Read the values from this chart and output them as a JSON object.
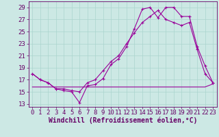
{
  "background_color": "#cce8e4",
  "grid_color": "#aad4ce",
  "line_color": "#990099",
  "xlabel": "Windchill (Refroidissement éolien,°C)",
  "xlabel_fontsize": 7,
  "tick_fontsize": 6.5,
  "xlim": [
    -0.5,
    23.5
  ],
  "ylim": [
    12.5,
    30.0
  ],
  "yticks": [
    13,
    15,
    17,
    19,
    21,
    23,
    25,
    27,
    29
  ],
  "xticks": [
    0,
    1,
    2,
    3,
    4,
    5,
    6,
    7,
    8,
    9,
    10,
    11,
    12,
    13,
    14,
    15,
    16,
    17,
    18,
    19,
    20,
    21,
    22,
    23
  ],
  "series1_x": [
    0,
    1,
    2,
    3,
    4,
    5,
    6,
    7,
    8,
    9,
    10,
    11,
    12,
    13,
    14,
    15,
    16,
    17,
    18,
    19,
    20,
    21,
    22,
    23
  ],
  "series1_y": [
    18.0,
    17.0,
    16.5,
    15.5,
    15.2,
    15.0,
    13.2,
    16.0,
    16.2,
    17.2,
    19.5,
    20.5,
    22.5,
    25.5,
    28.7,
    29.0,
    27.3,
    29.0,
    29.0,
    27.5,
    27.5,
    22.5,
    19.3,
    16.5
  ],
  "series2_x": [
    0,
    1,
    2,
    3,
    4,
    5,
    6,
    7,
    8,
    9,
    10,
    11,
    12,
    13,
    14,
    15,
    16,
    17,
    18,
    19,
    20,
    21,
    22,
    23
  ],
  "series2_y": [
    18.0,
    17.0,
    16.5,
    15.5,
    15.5,
    15.2,
    15.0,
    16.5,
    17.0,
    18.5,
    20.0,
    21.0,
    23.0,
    24.8,
    26.5,
    27.5,
    28.5,
    27.0,
    26.5,
    26.0,
    26.5,
    22.0,
    18.0,
    16.5
  ],
  "series3_x": [
    0,
    1,
    2,
    3,
    4,
    5,
    6,
    7,
    8,
    9,
    10,
    11,
    12,
    13,
    14,
    15,
    16,
    17,
    18,
    19,
    20,
    21,
    22,
    23
  ],
  "series3_y": [
    15.8,
    15.8,
    15.8,
    15.8,
    15.8,
    15.8,
    15.8,
    15.8,
    15.8,
    15.8,
    15.8,
    15.8,
    15.8,
    15.8,
    15.8,
    15.8,
    15.8,
    15.8,
    15.8,
    15.8,
    15.8,
    15.8,
    15.8,
    16.3
  ]
}
